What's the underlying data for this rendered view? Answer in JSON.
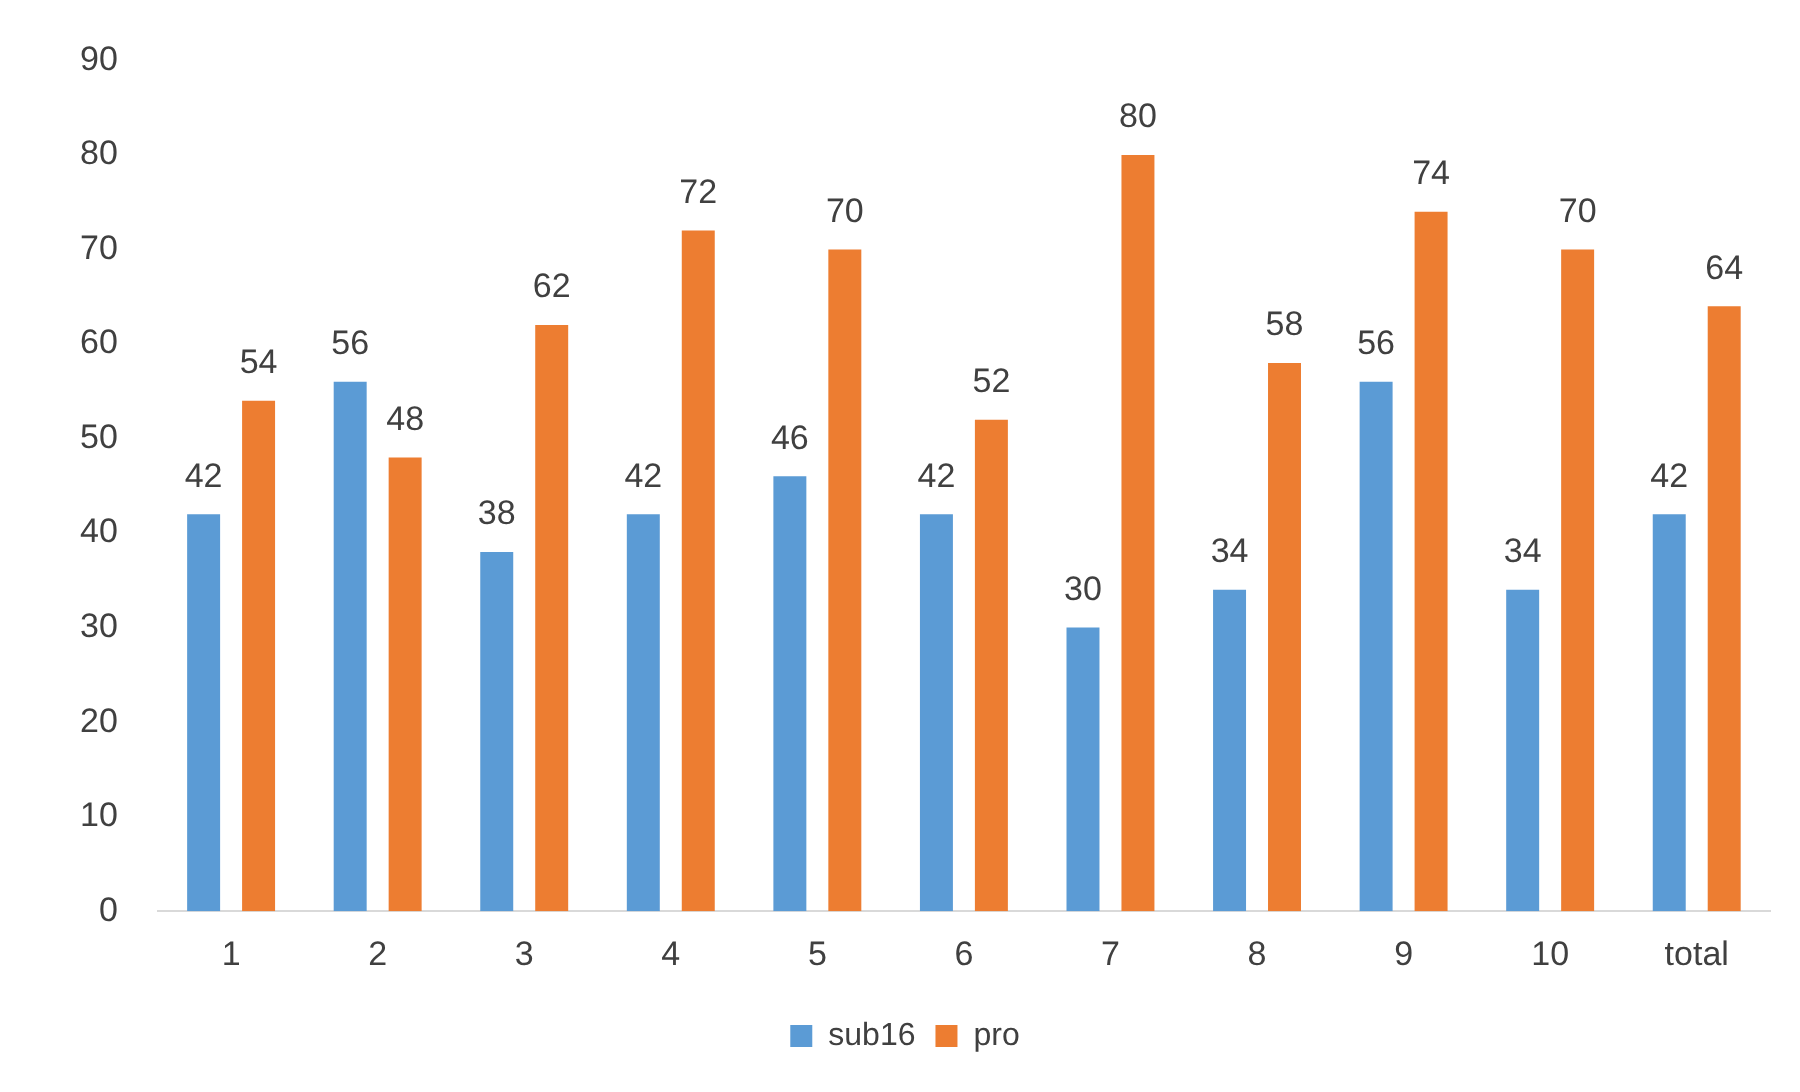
{
  "chart_data": {
    "type": "bar",
    "categories": [
      "1",
      "2",
      "3",
      "4",
      "5",
      "6",
      "7",
      "8",
      "9",
      "10",
      "total"
    ],
    "series": [
      {
        "name": "sub16",
        "color": "#5b9bd5",
        "values": [
          42,
          56,
          38,
          42,
          46,
          42,
          30,
          34,
          56,
          34,
          42
        ]
      },
      {
        "name": "pro",
        "color": "#ed7d31",
        "values": [
          54,
          48,
          62,
          72,
          70,
          52,
          80,
          58,
          74,
          70,
          64
        ]
      }
    ],
    "ylim": [
      0,
      90
    ],
    "yticks": [
      0,
      10,
      20,
      30,
      40,
      50,
      60,
      70,
      80,
      90
    ],
    "grid": false,
    "legend": "bottom",
    "data_labels": true
  }
}
